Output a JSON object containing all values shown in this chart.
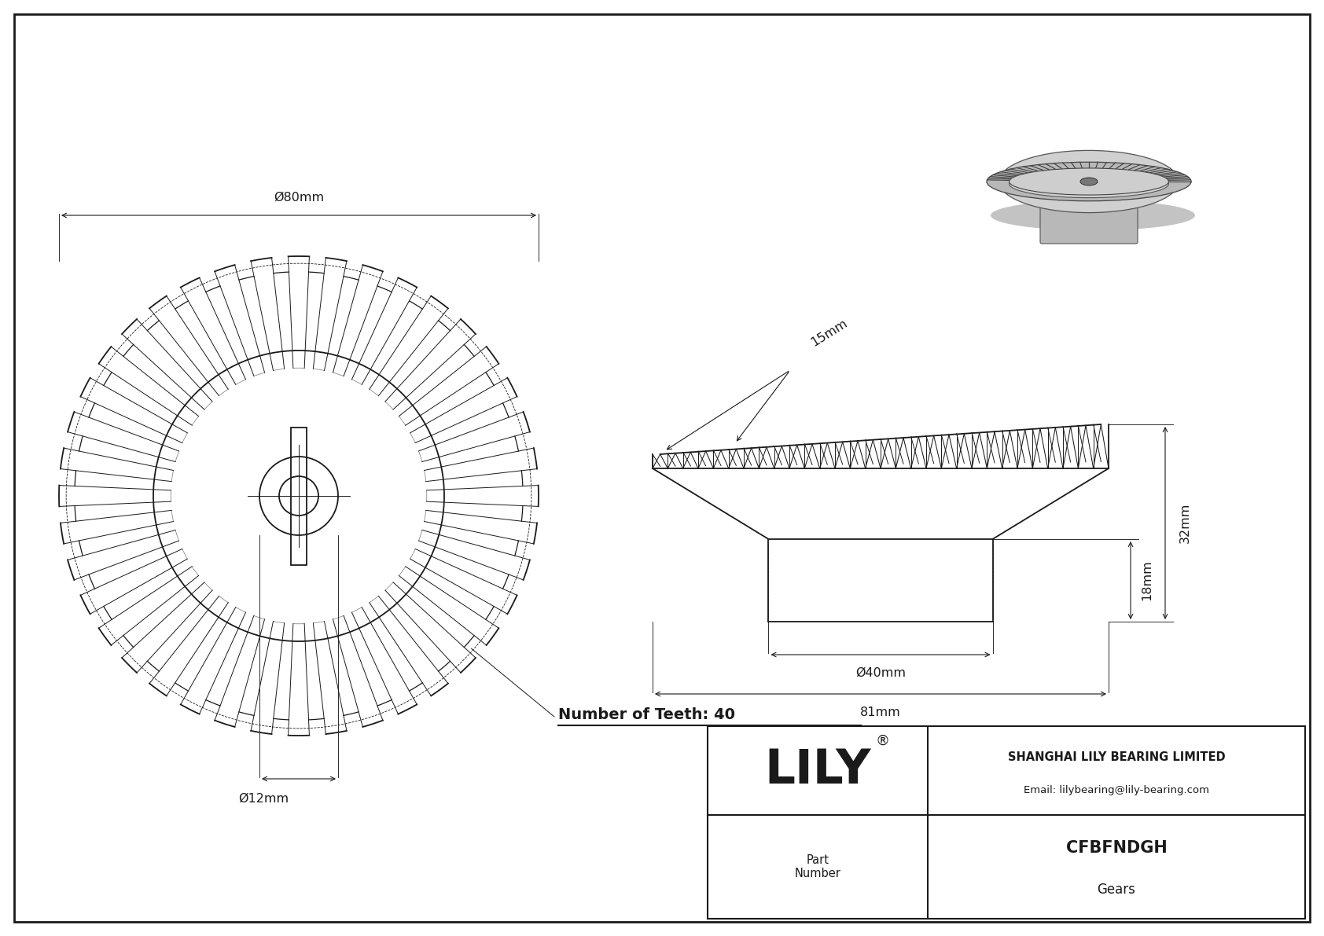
{
  "bg_color": "#ffffff",
  "line_color": "#1a1a1a",
  "company_name": "SHANGHAI LILY BEARING LIMITED",
  "company_email": "Email: lilybearing@lily-bearing.com",
  "part_number": "CFBFNDGH",
  "part_type": "Gears",
  "logo_text": "LILY",
  "part_label": "Part\nNumber",
  "dim_outer": "Ø80mm",
  "dim_hub": "Ø12mm",
  "dim_bore": "Ø40mm",
  "dim_top": "15mm",
  "dim_height_total": "32mm",
  "dim_height_bottom": "18mm",
  "dim_width": "81mm",
  "num_teeth_label": "Number of Teeth: 40",
  "num_teeth": 40,
  "border_color": "#333333"
}
